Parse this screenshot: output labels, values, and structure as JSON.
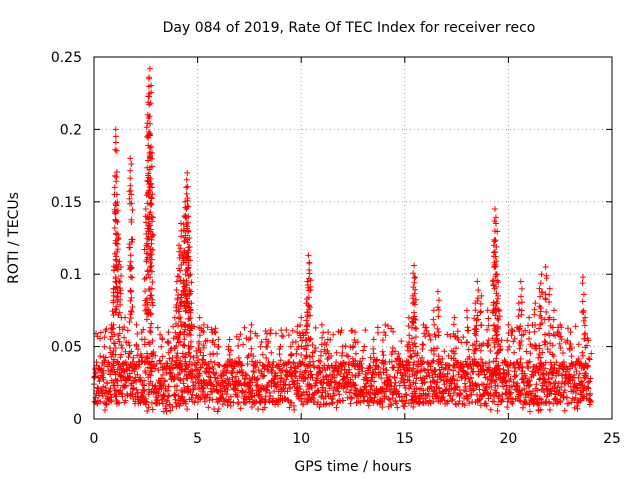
{
  "chart_data": {
    "type": "scatter",
    "title": "Day 084 of 2019, Rate Of TEC Index for receiver reco",
    "xlabel": "GPS time / hours",
    "ylabel": "ROTI / TECUs",
    "xlim": [
      0,
      25
    ],
    "ylim": [
      0,
      0.25
    ],
    "x_ticks": [
      0,
      5,
      10,
      15,
      20,
      25
    ],
    "x_tick_labels": [
      "0",
      "5",
      "10",
      "15",
      "20",
      "25"
    ],
    "y_ticks": [
      0,
      0.05,
      0.1,
      0.15,
      0.2,
      0.25
    ],
    "y_tick_labels": [
      "0",
      "0.05",
      "0.1",
      "0.15",
      "0.2",
      "0.25"
    ],
    "grid": true,
    "marker": "+",
    "point_color": "#ff0000",
    "grid_color": "#a0a0a0",
    "series": [
      {
        "x": [
          0.5,
          0.85,
          0.95,
          1.0,
          1.05,
          1.1,
          1.2,
          1.3,
          1.5,
          1.75,
          1.8,
          2.05,
          2.3,
          2.5,
          2.6,
          2.65,
          2.7,
          2.75,
          2.8,
          3.3,
          3.6,
          3.9,
          4.0,
          4.1,
          4.15,
          4.2,
          4.3,
          4.35,
          4.4,
          4.45,
          4.5,
          4.55,
          4.6,
          4.65,
          4.7,
          5.1,
          5.3,
          5.7,
          6.0,
          6.5,
          7.0,
          7.6,
          8.3,
          9.0,
          9.5,
          9.8,
          10.0,
          10.25,
          10.3,
          10.35,
          10.4,
          11.0,
          11.3,
          12.0,
          12.6,
          13.5,
          14.0,
          15.2,
          15.4,
          15.45,
          15.5,
          15.9,
          16.4,
          16.6,
          17.4,
          18.0,
          18.4,
          18.5,
          18.7,
          19.0,
          19.3,
          19.35,
          19.4,
          19.45,
          19.5,
          19.55,
          20.0,
          20.5,
          20.6,
          21.0,
          21.3,
          21.5,
          21.6,
          21.8,
          22.0,
          22.2,
          22.5,
          23.0,
          23.6,
          23.7
        ],
        "y": [
          0.05,
          0.065,
          0.085,
          0.16,
          0.2,
          0.155,
          0.125,
          0.105,
          0.07,
          0.18,
          0.155,
          0.065,
          0.06,
          0.145,
          0.21,
          0.235,
          0.242,
          0.188,
          0.16,
          0.055,
          0.06,
          0.07,
          0.095,
          0.12,
          0.08,
          0.135,
          0.065,
          0.14,
          0.15,
          0.16,
          0.17,
          0.14,
          0.125,
          0.1,
          0.08,
          0.07,
          0.065,
          0.06,
          0.055,
          0.05,
          0.055,
          0.065,
          0.055,
          0.05,
          0.05,
          0.06,
          0.07,
          0.08,
          0.095,
          0.113,
          0.108,
          0.065,
          0.06,
          0.05,
          0.06,
          0.055,
          0.06,
          0.07,
          0.085,
          0.106,
          0.098,
          0.065,
          0.075,
          0.088,
          0.07,
          0.075,
          0.08,
          0.095,
          0.085,
          0.075,
          0.12,
          0.145,
          0.135,
          0.1,
          0.085,
          0.075,
          0.065,
          0.08,
          0.095,
          0.07,
          0.08,
          0.09,
          0.1,
          0.105,
          0.09,
          0.075,
          0.065,
          0.06,
          0.098,
          0.07
        ]
      }
    ],
    "background_band": {
      "x_range": [
        0,
        24
      ],
      "typical_range": [
        0.01,
        0.04
      ],
      "peak_range": [
        0.005,
        0.065
      ],
      "description_of_density": "dense points throughout the day"
    }
  }
}
